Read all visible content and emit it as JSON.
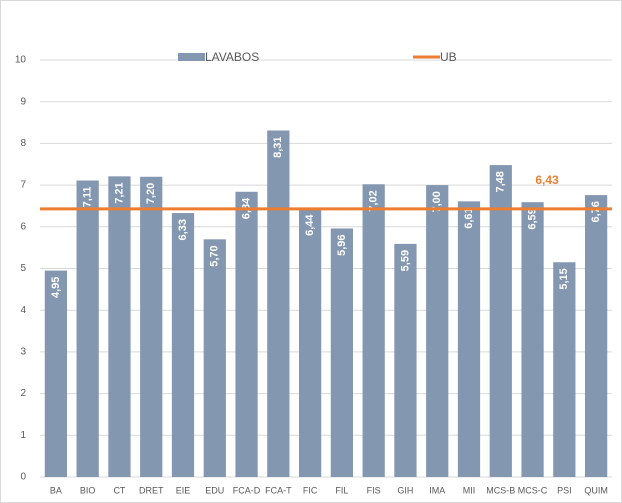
{
  "chart_data": {
    "type": "bar",
    "categories": [
      "BA",
      "BIO",
      "CT",
      "DRET",
      "EIE",
      "EDU",
      "FCA-D",
      "FCA-T",
      "FIC",
      "FIL",
      "FIS",
      "GIH",
      "IMA",
      "MII",
      "MCS-B",
      "MCS-C",
      "PSI",
      "QUIM"
    ],
    "series": [
      {
        "name": "LAVABOS",
        "color": "#8497b0",
        "values": [
          4.95,
          7.11,
          7.21,
          7.2,
          6.33,
          5.7,
          6.84,
          8.31,
          6.44,
          5.96,
          7.02,
          5.59,
          7.0,
          6.61,
          7.48,
          6.59,
          5.15,
          6.76
        ],
        "value_labels": [
          "4,95",
          "7,11",
          "7,21",
          "7,20",
          "6,33",
          "5,70",
          "6,84",
          "8,31",
          "6,44",
          "5,96",
          "7,02",
          "5,59",
          "7,00",
          "6,61",
          "7,48",
          "6,59",
          "5,15",
          "6,76"
        ]
      }
    ],
    "reference_line": {
      "name": "UB",
      "value": 6.43,
      "value_label": "6,43",
      "color": "#ed7d31"
    },
    "ylim": [
      0,
      10
    ],
    "yticks": [
      0,
      1,
      2,
      3,
      4,
      5,
      6,
      7,
      8,
      9,
      10
    ],
    "grid": true,
    "legend": "top"
  }
}
